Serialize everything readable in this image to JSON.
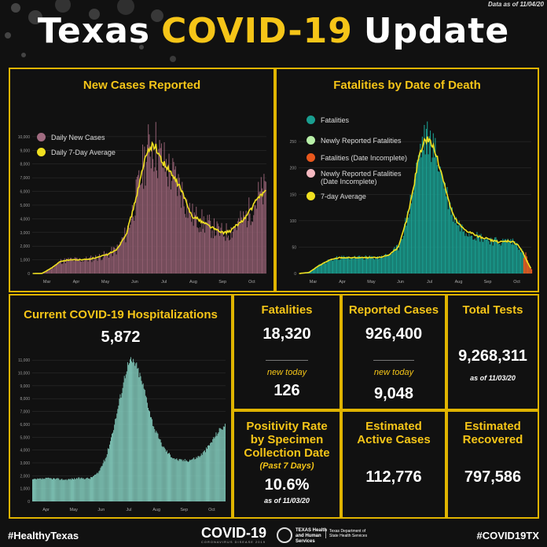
{
  "header": {
    "as_of": "Data as of 11/04/20",
    "title_white_1": "Texas",
    "title_yellow": "COVID-19",
    "title_white_2": "Update"
  },
  "colors": {
    "accent": "#f5c518",
    "new_cases_bar": "#8f5d6f",
    "avg_line": "#f0e020",
    "fatalities_bar": "#1a9e90",
    "hosp_bar": "#85cfc0",
    "incomplete": "#e8571c"
  },
  "panels": {
    "new_cases_title": "New Cases Reported",
    "fatalities_title": "Fatalities by Date of Death",
    "hosp_title": "Current COVID-19 Hospitalizations",
    "hosp_value": "5,872"
  },
  "stats": {
    "fatalities": {
      "title": "Fatalities",
      "value": "18,320",
      "new_label": "new today",
      "new_value": "126"
    },
    "cases": {
      "title": "Reported Cases",
      "value": "926,400",
      "new_label": "new today",
      "new_value": "9,048"
    },
    "tests": {
      "title": "Total Tests",
      "value": "9,268,311",
      "as_of": "as of 11/03/20"
    },
    "positivity": {
      "title_1": "Positivity Rate",
      "title_2": "by Specimen",
      "title_3": "Collection Date",
      "sub": "(Past 7 Days)",
      "value": "10.6%",
      "as_of": "as of 11/03/20"
    },
    "active": {
      "title_1": "Estimated",
      "title_2": "Active Cases",
      "value": "112,776"
    },
    "recovered": {
      "title_1": "Estimated",
      "title_2": "Recovered",
      "value": "797,586"
    }
  },
  "footer": {
    "left": "#HealthyTexas",
    "logo": "COVID-19",
    "logo_sub": "CORONAVIRUS DISEASE 2019",
    "agency": "TEXAS Health and Human Services",
    "agency2": "Texas Department of State Health Services",
    "right": "#COVID19TX"
  },
  "chart_data": [
    {
      "type": "bar",
      "title": "New Cases Reported",
      "x_ticks": [
        "Mar",
        "Apr",
        "May",
        "Jun",
        "Jul",
        "Aug",
        "Sep",
        "Oct"
      ],
      "y_ticks": [
        "0",
        "1,000",
        "2,000",
        "3,000",
        "4,000",
        "5,000",
        "6,000",
        "7,000",
        "8,000",
        "9,000",
        "10,000"
      ],
      "ylim": [
        0,
        10800
      ],
      "legend": [
        "Daily New Cases",
        "Daily 7-Day Average"
      ],
      "avg_keypoints": [
        [
          0,
          0
        ],
        [
          10,
          10
        ],
        [
          20,
          400
        ],
        [
          30,
          900
        ],
        [
          40,
          1000
        ],
        [
          50,
          1000
        ],
        [
          60,
          1050
        ],
        [
          70,
          1200
        ],
        [
          80,
          1400
        ],
        [
          90,
          1800
        ],
        [
          100,
          3000
        ],
        [
          108,
          5000
        ],
        [
          115,
          7000
        ],
        [
          120,
          8500
        ],
        [
          125,
          9300
        ],
        [
          130,
          9400
        ],
        [
          135,
          8500
        ],
        [
          140,
          8000
        ],
        [
          145,
          7500
        ],
        [
          150,
          7000
        ],
        [
          155,
          6500
        ],
        [
          160,
          5800
        ],
        [
          165,
          4800
        ],
        [
          170,
          4200
        ],
        [
          175,
          4000
        ],
        [
          180,
          3800
        ],
        [
          185,
          3600
        ],
        [
          190,
          3400
        ],
        [
          195,
          3200
        ],
        [
          200,
          3000
        ],
        [
          205,
          3000
        ],
        [
          210,
          3100
        ],
        [
          215,
          3400
        ],
        [
          220,
          3700
        ],
        [
          225,
          4000
        ],
        [
          230,
          4500
        ],
        [
          235,
          5000
        ],
        [
          240,
          5600
        ],
        [
          245,
          5900
        ],
        [
          248,
          6000
        ]
      ],
      "noise_amp": 0.25
    },
    {
      "type": "bar",
      "title": "Fatalities by Date of Death",
      "x_ticks": [
        "Mar",
        "Apr",
        "May",
        "Jun",
        "Jul",
        "Aug",
        "Sep",
        "Oct"
      ],
      "y_ticks": [
        "0",
        "50",
        "100",
        "150",
        "200",
        "250"
      ],
      "ylim": [
        0,
        280
      ],
      "legend": [
        "Fatalities",
        "Newly Reported Fatalities",
        "Fatalities (Date Incomplete)",
        "Newly Reported Fatalities (Date Incomplete)",
        "7-day Average"
      ],
      "avg_keypoints": [
        [
          0,
          0
        ],
        [
          10,
          2
        ],
        [
          20,
          15
        ],
        [
          30,
          25
        ],
        [
          40,
          30
        ],
        [
          50,
          30
        ],
        [
          60,
          30
        ],
        [
          70,
          30
        ],
        [
          80,
          30
        ],
        [
          90,
          35
        ],
        [
          100,
          50
        ],
        [
          108,
          100
        ],
        [
          115,
          160
        ],
        [
          120,
          220
        ],
        [
          125,
          250
        ],
        [
          130,
          255
        ],
        [
          135,
          240
        ],
        [
          140,
          210
        ],
        [
          145,
          180
        ],
        [
          150,
          140
        ],
        [
          155,
          110
        ],
        [
          160,
          95
        ],
        [
          165,
          85
        ],
        [
          170,
          80
        ],
        [
          175,
          75
        ],
        [
          180,
          70
        ],
        [
          185,
          68
        ],
        [
          190,
          65
        ],
        [
          195,
          62
        ],
        [
          200,
          60
        ],
        [
          205,
          60
        ],
        [
          210,
          62
        ],
        [
          215,
          60
        ],
        [
          220,
          55
        ],
        [
          225,
          40
        ],
        [
          230,
          20
        ],
        [
          233,
          10
        ]
      ],
      "incomplete_keypoints": [
        [
          226,
          30
        ],
        [
          228,
          40
        ],
        [
          230,
          25
        ],
        [
          232,
          15
        ],
        [
          234,
          8
        ]
      ],
      "noise_amp": 0.15
    },
    {
      "type": "bar",
      "title": "Current COVID-19 Hospitalizations",
      "x_ticks": [
        "Apr",
        "May",
        "Jun",
        "Jul",
        "Aug",
        "Sep",
        "Oct"
      ],
      "y_ticks": [
        "0",
        "1,000",
        "2,000",
        "3,000",
        "4,000",
        "5,000",
        "6,000",
        "7,000",
        "8,000",
        "9,000",
        "10,000",
        "11,000"
      ],
      "ylim": [
        0,
        11500
      ],
      "avg_keypoints": [
        [
          0,
          1700
        ],
        [
          20,
          1800
        ],
        [
          40,
          1700
        ],
        [
          55,
          1800
        ],
        [
          70,
          1800
        ],
        [
          80,
          2200
        ],
        [
          90,
          3500
        ],
        [
          100,
          6000
        ],
        [
          110,
          9000
        ],
        [
          115,
          10500
        ],
        [
          120,
          10900
        ],
        [
          125,
          10800
        ],
        [
          130,
          10000
        ],
        [
          135,
          9000
        ],
        [
          140,
          7800
        ],
        [
          145,
          6500
        ],
        [
          150,
          5500
        ],
        [
          155,
          4800
        ],
        [
          160,
          4200
        ],
        [
          165,
          3800
        ],
        [
          170,
          3500
        ],
        [
          175,
          3300
        ],
        [
          180,
          3200
        ],
        [
          185,
          3200
        ],
        [
          190,
          3200
        ],
        [
          195,
          3300
        ],
        [
          200,
          3400
        ],
        [
          205,
          3600
        ],
        [
          210,
          3900
        ],
        [
          215,
          4300
        ],
        [
          220,
          4800
        ],
        [
          225,
          5300
        ],
        [
          230,
          5700
        ],
        [
          235,
          5872
        ]
      ],
      "noise_amp": 0.04
    }
  ]
}
